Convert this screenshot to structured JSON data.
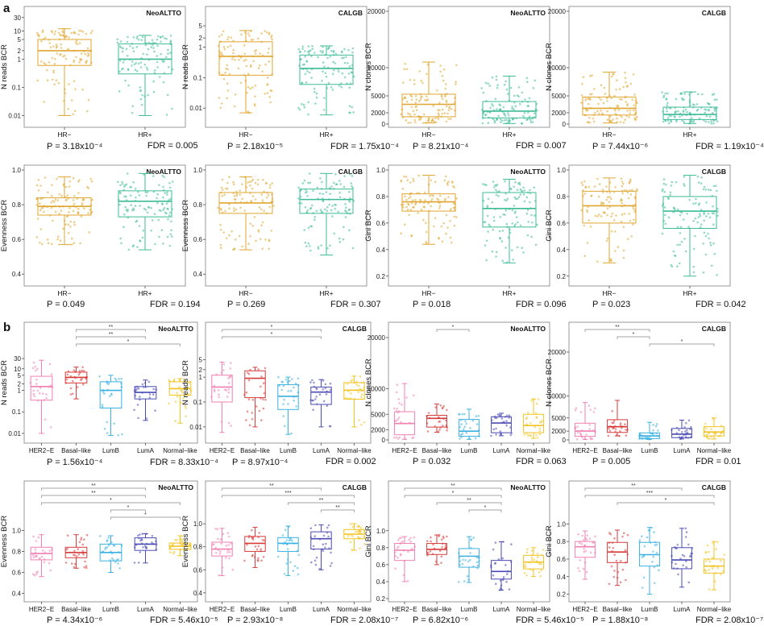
{
  "panels": {
    "a": "a",
    "b": "b"
  },
  "colors": {
    "hr_neg": "#e0a52e",
    "hr_pos": "#3dbb95",
    "her2e": "#f27fb1",
    "basal": "#d83a3a",
    "lumb": "#39b1e3",
    "luma": "#4a4ab5",
    "normal": "#f2c31f",
    "frame": "#7f7f7f"
  },
  "chart_data": [
    {
      "type": "box",
      "title": "NeoALTTO",
      "ylabel": "N reads BCR",
      "scale": "log",
      "ylim": [
        0.005,
        50
      ],
      "yticks": [
        "0.01",
        "0.1",
        "1",
        "2",
        "5",
        "10",
        "30"
      ],
      "categories": [
        "HR−",
        "HR+"
      ],
      "medians": [
        2.0,
        1.0
      ],
      "q1": [
        0.6,
        0.3
      ],
      "q3": [
        5,
        3.5
      ],
      "whisker_low": [
        0.01,
        0.01
      ],
      "whisker_high": [
        12,
        7
      ],
      "stat": "P = 3.18x10⁻⁴",
      "fdr": "FDR = 0.005"
    },
    {
      "type": "box",
      "title": "CALGB",
      "ylabel": "N reads BCR",
      "scale": "log",
      "ylim": [
        0.003,
        15
      ],
      "yticks": [
        "0.01",
        "0.1",
        "1",
        "2",
        "5"
      ],
      "categories": [
        "HR−",
        "HR+"
      ],
      "medians": [
        0.5,
        0.2
      ],
      "q1": [
        0.12,
        0.06
      ],
      "q3": [
        1.5,
        0.55
      ],
      "whisker_low": [
        0.007,
        0.006
      ],
      "whisker_high": [
        3.5,
        1.1
      ],
      "stat": "P = 2.18x10⁻⁵",
      "fdr": "FDR = 1.75x10⁻⁴"
    },
    {
      "type": "box",
      "title": "NeoALTTO",
      "ylabel": "N clones BCR",
      "scale": "linear",
      "ylim": [
        0,
        20000
      ],
      "yticks": [
        "0",
        "2000",
        "5000",
        "10000",
        "20000"
      ],
      "categories": [
        "HR−",
        "HR+"
      ],
      "medians": [
        3500,
        2300
      ],
      "q1": [
        1300,
        1100
      ],
      "q3": [
        5300,
        4000
      ],
      "whisker_low": [
        200,
        100
      ],
      "whisker_high": [
        11000,
        8500
      ],
      "stat": "P = 8.21x10⁻⁴",
      "fdr": "FDR = 0.007"
    },
    {
      "type": "box",
      "title": "CALGB",
      "ylabel": "N clones BCR",
      "scale": "linear",
      "ylim": [
        0,
        20000
      ],
      "yticks": [
        "0",
        "2000",
        "5000",
        "10000",
        "20000"
      ],
      "categories": [
        "HR−",
        "HR+"
      ],
      "medians": [
        2800,
        1700
      ],
      "q1": [
        1600,
        800
      ],
      "q3": [
        4800,
        3000
      ],
      "whisker_low": [
        200,
        100
      ],
      "whisker_high": [
        9200,
        5700
      ],
      "stat": "P = 7.44x10⁻⁶",
      "fdr": "FDR = 1.19x10⁻⁴"
    },
    {
      "type": "box",
      "title": "NeoALTTO",
      "ylabel": "Evenness BCR",
      "scale": "linear",
      "ylim": [
        0.35,
        1.0
      ],
      "yticks": [
        "0.4",
        "0.6",
        "0.8",
        "1.0"
      ],
      "categories": [
        "HR−",
        "HR+"
      ],
      "medians": [
        0.79,
        0.82
      ],
      "q1": [
        0.74,
        0.73
      ],
      "q3": [
        0.84,
        0.88
      ],
      "whisker_low": [
        0.57,
        0.54
      ],
      "whisker_high": [
        0.96,
        0.98
      ],
      "stat": "P = 0.049",
      "fdr": "FDR = 0.194"
    },
    {
      "type": "box",
      "title": "CALGB",
      "ylabel": "Evenness BCR",
      "scale": "linear",
      "ylim": [
        0.35,
        1.0
      ],
      "yticks": [
        "0.4",
        "0.6",
        "0.8",
        "1.0"
      ],
      "categories": [
        "HR−",
        "HR+"
      ],
      "medians": [
        0.81,
        0.83
      ],
      "q1": [
        0.75,
        0.75
      ],
      "q3": [
        0.87,
        0.89
      ],
      "whisker_low": [
        0.54,
        0.51
      ],
      "whisker_high": [
        0.96,
        0.98
      ],
      "stat": "P = 0.269",
      "fdr": "FDR = 0.307"
    },
    {
      "type": "box",
      "title": "NeoALTTO",
      "ylabel": "Gini BCR",
      "scale": "linear",
      "ylim": [
        0.15,
        1.0
      ],
      "yticks": [
        "0.2",
        "0.4",
        "0.6",
        "0.8",
        "1.0"
      ],
      "categories": [
        "HR−",
        "HR+"
      ],
      "medians": [
        0.76,
        0.71
      ],
      "q1": [
        0.69,
        0.57
      ],
      "q3": [
        0.82,
        0.83
      ],
      "whisker_low": [
        0.44,
        0.3
      ],
      "whisker_high": [
        0.96,
        0.93
      ],
      "stat": "P = 0.018",
      "fdr": "FDR = 0.096"
    },
    {
      "type": "box",
      "title": "CALGB",
      "ylabel": "Gini BCR",
      "scale": "linear",
      "ylim": [
        0.15,
        1.0
      ],
      "yticks": [
        "0.2",
        "0.4",
        "0.6",
        "0.8",
        "1.0"
      ],
      "categories": [
        "HR−",
        "HR+"
      ],
      "medians": [
        0.73,
        0.69
      ],
      "q1": [
        0.6,
        0.56
      ],
      "q3": [
        0.84,
        0.8
      ],
      "whisker_low": [
        0.3,
        0.2
      ],
      "whisker_high": [
        0.94,
        0.96
      ],
      "stat": "P = 0.023",
      "fdr": "FDR = 0.042"
    },
    {
      "type": "box",
      "title": "NeoALTTO",
      "ylabel": "N reads BCR",
      "scale": "log",
      "ylim": [
        0.005,
        60
      ],
      "yticks": [
        "0.01",
        "0.1",
        "1",
        "2",
        "5",
        "10",
        "30"
      ],
      "categories": [
        "HER2−E",
        "Basal−like",
        "LumB",
        "LumA",
        "Normal−like"
      ],
      "medians": [
        1.5,
        4.0,
        1.0,
        0.8,
        1.2
      ],
      "q1": [
        0.35,
        2.2,
        0.15,
        0.4,
        0.6
      ],
      "q3": [
        4.5,
        7.0,
        2.5,
        1.5,
        2.5
      ],
      "whisker_low": [
        0.01,
        0.4,
        0.008,
        0.04,
        0.03
      ],
      "whisker_high": [
        25,
        12,
        5,
        3,
        3.5
      ],
      "sig": [
        "**",
        "**",
        "*"
      ],
      "stat": "P = 1.56x10⁻⁴",
      "fdr": "FDR = 8.33x10⁻⁴"
    },
    {
      "type": "box",
      "title": "CALGB",
      "ylabel": "N reads BCR",
      "scale": "log",
      "ylim": [
        0.003,
        20
      ],
      "yticks": [
        "0.01",
        "0.1",
        "1",
        "2",
        "5"
      ],
      "categories": [
        "HER2−E",
        "Basal−like",
        "LumB",
        "LumA",
        "Normal−like"
      ],
      "medians": [
        0.4,
        0.9,
        0.17,
        0.25,
        0.3
      ],
      "q1": [
        0.1,
        0.15,
        0.05,
        0.08,
        0.13
      ],
      "q3": [
        1.2,
        1.8,
        0.5,
        0.4,
        0.6
      ],
      "whisker_low": [
        0.006,
        0.01,
        0.005,
        0.01,
        0.01
      ],
      "whisker_high": [
        4,
        2.5,
        1,
        0.8,
        1.1
      ],
      "sig": [
        "*",
        "*"
      ],
      "stat": "P = 8.97x10⁻⁴",
      "fdr": "FDR = 0.002"
    },
    {
      "type": "box",
      "title": "NeoALTTO",
      "ylabel": "N clones BCR",
      "scale": "linear",
      "ylim": [
        0,
        20000
      ],
      "yticks": [
        "0",
        "2000",
        "5000",
        "10000",
        "20000"
      ],
      "categories": [
        "HER2−E",
        "Basal−like",
        "LumB",
        "LumA",
        "Normal−like"
      ],
      "medians": [
        3200,
        4200,
        1700,
        3300,
        2800
      ],
      "q1": [
        1000,
        2500,
        700,
        1400,
        1400
      ],
      "q3": [
        5500,
        4800,
        4000,
        4500,
        5000
      ],
      "whisker_low": [
        100,
        1500,
        100,
        800,
        300
      ],
      "whisker_high": [
        11000,
        7000,
        6000,
        5200,
        8000
      ],
      "sig": [
        "*"
      ],
      "stat": "P = 0.032",
      "fdr": "FDR = 0.063"
    },
    {
      "type": "box",
      "title": "CALGB",
      "ylabel": "N clones BCR",
      "scale": "linear",
      "ylim": [
        0,
        20000
      ],
      "yticks": [
        "0",
        "2000",
        "5000",
        "10000",
        "20000"
      ],
      "categories": [
        "HER2−E",
        "Basal−like",
        "LumB",
        "LumA",
        "Normal−like"
      ],
      "medians": [
        2000,
        3000,
        900,
        1300,
        1800
      ],
      "q1": [
        800,
        1700,
        300,
        500,
        900
      ],
      "q3": [
        3800,
        4600,
        1600,
        2600,
        3000
      ],
      "whisker_low": [
        100,
        900,
        100,
        200,
        200
      ],
      "whisker_high": [
        8500,
        9000,
        4000,
        4500,
        5000
      ],
      "sig": [
        "**",
        "*",
        "*"
      ],
      "stat": "P = 0.005",
      "fdr": "FDR = 0.01"
    },
    {
      "type": "box",
      "title": "NeoALTTO",
      "ylabel": "Evenness BCR",
      "scale": "linear",
      "ylim": [
        0.35,
        1.05
      ],
      "yticks": [
        "0.4",
        "0.6",
        "0.8",
        "1.0"
      ],
      "categories": [
        "HER2−E",
        "Basal−like",
        "LumB",
        "LumA",
        "Normal−like"
      ],
      "medians": [
        0.78,
        0.79,
        0.79,
        0.87,
        0.85
      ],
      "q1": [
        0.72,
        0.74,
        0.71,
        0.81,
        0.82
      ],
      "q3": [
        0.84,
        0.84,
        0.87,
        0.93,
        0.88
      ],
      "whisker_low": [
        0.56,
        0.64,
        0.6,
        0.69,
        0.76
      ],
      "whisker_high": [
        0.96,
        0.96,
        0.95,
        0.97,
        0.95
      ],
      "sig": [
        "**",
        "**",
        "*",
        "*",
        "*"
      ],
      "stat": "P = 4.34x10⁻⁶",
      "fdr": "FDR = 5.46x10⁻⁵"
    },
    {
      "type": "box",
      "title": "CALGB",
      "ylabel": "Evenness BCR",
      "scale": "linear",
      "ylim": [
        0.35,
        1.05
      ],
      "yticks": [
        "0.4",
        "0.6",
        "0.8",
        "1.0"
      ],
      "categories": [
        "HER2−E",
        "Basal−like",
        "LumB",
        "LumA",
        "Normal−like"
      ],
      "medians": [
        0.78,
        0.83,
        0.83,
        0.87,
        0.91
      ],
      "q1": [
        0.72,
        0.76,
        0.76,
        0.78,
        0.87
      ],
      "q3": [
        0.84,
        0.89,
        0.88,
        0.93,
        0.95
      ],
      "whisker_low": [
        0.55,
        0.62,
        0.55,
        0.6,
        0.77
      ],
      "whisker_high": [
        0.96,
        0.97,
        0.98,
        0.99,
        1.0
      ],
      "sig": [
        "**",
        "***",
        "**",
        "**"
      ],
      "stat": "P = 2.93x10⁻⁸",
      "fdr": "FDR = 2.08x10⁻⁷"
    },
    {
      "type": "box",
      "title": "NeoALTTO",
      "ylabel": "Gini BCR",
      "scale": "linear",
      "ylim": [
        0.2,
        1.15
      ],
      "yticks": [
        "0.2",
        "0.4",
        "0.6",
        "0.8",
        "1.0"
      ],
      "categories": [
        "HER2−E",
        "Basal−like",
        "LumB",
        "LumA",
        "Normal−like"
      ],
      "medians": [
        0.77,
        0.78,
        0.7,
        0.52,
        0.63
      ],
      "q1": [
        0.65,
        0.72,
        0.57,
        0.43,
        0.55
      ],
      "q3": [
        0.85,
        0.85,
        0.79,
        0.65,
        0.71
      ],
      "whisker_low": [
        0.4,
        0.6,
        0.39,
        0.3,
        0.46
      ],
      "whisker_high": [
        0.93,
        0.95,
        0.93,
        0.87,
        0.8
      ],
      "sig": [
        "**",
        "*",
        "**",
        "*"
      ],
      "stat": "P = 6.82x10⁻⁶",
      "fdr": "FDR = 5.46x10⁻⁵"
    },
    {
      "type": "box",
      "title": "CALGB",
      "ylabel": "Gini BCR",
      "scale": "linear",
      "ylim": [
        0.15,
        1.15
      ],
      "yticks": [
        "0.2",
        "0.4",
        "0.6",
        "0.8",
        "1.0"
      ],
      "categories": [
        "HER2−E",
        "Basal−like",
        "LumB",
        "LumA",
        "Normal−like"
      ],
      "medians": [
        0.74,
        0.68,
        0.65,
        0.59,
        0.52
      ],
      "q1": [
        0.62,
        0.56,
        0.52,
        0.49,
        0.44
      ],
      "q3": [
        0.8,
        0.79,
        0.79,
        0.73,
        0.6
      ],
      "whisker_low": [
        0.37,
        0.3,
        0.2,
        0.28,
        0.25
      ],
      "whisker_high": [
        0.92,
        0.93,
        0.96,
        0.95,
        0.8
      ],
      "sig": [
        "**",
        "***",
        "*"
      ],
      "stat": "P = 1.88x10⁻⁸",
      "fdr": "FDR = 2.08x10⁻⁷"
    }
  ]
}
